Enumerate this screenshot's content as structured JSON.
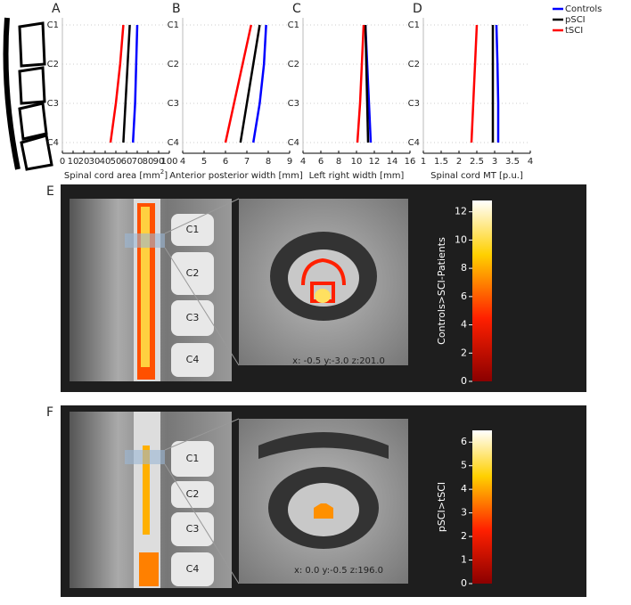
{
  "chart_data": [
    {
      "type": "line",
      "panel": "A",
      "xlabel": "Spinal cord area [mm",
      "xlabel_sup": "2",
      "xlabel_end": "]",
      "categories": [
        "C1",
        "C2",
        "C3",
        "C4"
      ],
      "xlim": [
        0,
        100
      ],
      "xticks": [
        0,
        10,
        20,
        30,
        40,
        50,
        60,
        70,
        80,
        90,
        100
      ],
      "series": [
        {
          "name": "Controls",
          "color": "#0000ff",
          "values": [
            70,
            69,
            68,
            66
          ]
        },
        {
          "name": "pSCI",
          "color": "#000000",
          "values": [
            63,
            61,
            59,
            57
          ]
        },
        {
          "name": "tSCI",
          "color": "#ff0000",
          "values": [
            57,
            54,
            50,
            45
          ]
        }
      ]
    },
    {
      "type": "line",
      "panel": "B",
      "xlabel": "Anterior posterior width [mm]",
      "categories": [
        "C1",
        "C2",
        "C3",
        "C4"
      ],
      "xlim": [
        4,
        9
      ],
      "xticks": [
        4,
        5,
        6,
        7,
        8,
        9
      ],
      "series": [
        {
          "name": "Controls",
          "color": "#0000ff",
          "values": [
            7.9,
            7.8,
            7.6,
            7.3
          ]
        },
        {
          "name": "pSCI",
          "color": "#000000",
          "values": [
            7.6,
            7.3,
            7.0,
            6.7
          ]
        },
        {
          "name": "tSCI",
          "color": "#ff0000",
          "values": [
            7.2,
            6.8,
            6.4,
            6.0
          ]
        }
      ]
    },
    {
      "type": "line",
      "panel": "C",
      "xlabel": "Left right width [mm]",
      "categories": [
        "C1",
        "C2",
        "C3",
        "C4"
      ],
      "xlim": [
        4,
        16
      ],
      "xticks": [
        4,
        6,
        8,
        10,
        12,
        14,
        16
      ],
      "series": [
        {
          "name": "Controls",
          "color": "#0000ff",
          "values": [
            11.0,
            11.2,
            11.4,
            11.6
          ]
        },
        {
          "name": "pSCI",
          "color": "#000000",
          "values": [
            11.0,
            11.1,
            11.2,
            11.3
          ]
        },
        {
          "name": "tSCI",
          "color": "#ff0000",
          "values": [
            10.8,
            10.6,
            10.4,
            10.1
          ]
        }
      ]
    },
    {
      "type": "line",
      "panel": "D",
      "xlabel": "Spinal cord MT [p.u.]",
      "categories": [
        "C1",
        "C2",
        "C3",
        "C4"
      ],
      "xlim": [
        1,
        4
      ],
      "xticks": [
        1,
        1.5,
        2,
        2.5,
        3,
        3.5,
        4
      ],
      "series": [
        {
          "name": "Controls",
          "color": "#0000ff",
          "values": [
            3.05,
            3.08,
            3.1,
            3.1
          ]
        },
        {
          "name": "pSCI",
          "color": "#000000",
          "values": [
            2.95,
            2.95,
            2.95,
            2.95
          ]
        },
        {
          "name": "tSCI",
          "color": "#ff0000",
          "values": [
            2.5,
            2.45,
            2.4,
            2.35
          ]
        }
      ]
    },
    {
      "type": "colorbar",
      "panel": "E",
      "label": "Controls>SCI-Patients",
      "coords": "x: -0.5 y:-3.0 z:201.0",
      "vertebrae": [
        "C1",
        "C2",
        "C3",
        "C4"
      ],
      "ylim": [
        0,
        12.8
      ],
      "yticks": [
        0,
        2,
        4,
        6,
        8,
        10,
        12
      ]
    },
    {
      "type": "colorbar",
      "panel": "F",
      "label": "pSCI>tSCI",
      "coords": "x: 0.0 y:-0.5 z:196.0",
      "vertebrae": [
        "C1",
        "C2",
        "C3",
        "C4"
      ],
      "ylim": [
        0,
        6.5
      ],
      "yticks": [
        0,
        1,
        2,
        3,
        4,
        5,
        6
      ]
    }
  ]
}
